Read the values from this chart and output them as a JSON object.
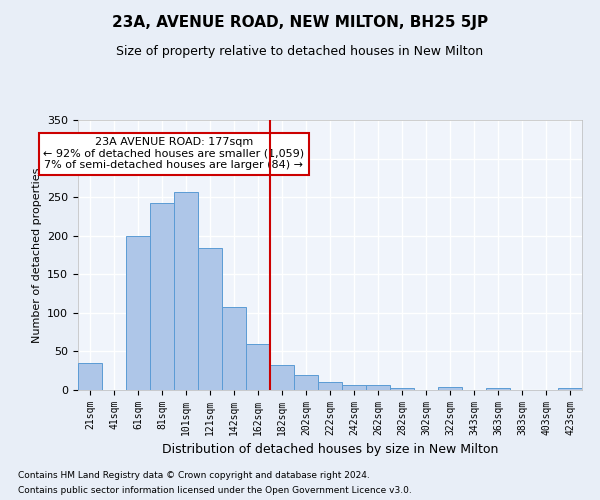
{
  "title": "23A, AVENUE ROAD, NEW MILTON, BH25 5JP",
  "subtitle": "Size of property relative to detached houses in New Milton",
  "xlabel": "Distribution of detached houses by size in New Milton",
  "ylabel": "Number of detached properties",
  "footnote1": "Contains HM Land Registry data © Crown copyright and database right 2024.",
  "footnote2": "Contains public sector information licensed under the Open Government Licence v3.0.",
  "bar_labels": [
    "21sqm",
    "41sqm",
    "61sqm",
    "81sqm",
    "101sqm",
    "121sqm",
    "142sqm",
    "162sqm",
    "182sqm",
    "202sqm",
    "222sqm",
    "242sqm",
    "262sqm",
    "282sqm",
    "302sqm",
    "322sqm",
    "343sqm",
    "363sqm",
    "383sqm",
    "403sqm",
    "423sqm"
  ],
  "bar_values": [
    35,
    0,
    199,
    243,
    257,
    184,
    108,
    59,
    32,
    19,
    10,
    6,
    6,
    3,
    0,
    4,
    0,
    2,
    0,
    0,
    2
  ],
  "bar_color": "#aec6e8",
  "bar_edge_color": "#5b9bd5",
  "vline_color": "#cc0000",
  "annotation_title": "23A AVENUE ROAD: 177sqm",
  "annotation_line1": "← 92% of detached houses are smaller (1,059)",
  "annotation_line2": "7% of semi-detached houses are larger (84) →",
  "annotation_box_color": "#cc0000",
  "ylim": [
    0,
    350
  ],
  "yticks": [
    0,
    50,
    100,
    150,
    200,
    250,
    300,
    350
  ],
  "bg_color": "#e8eef7",
  "plot_bg_color": "#f0f4fb",
  "grid_color": "#ffffff",
  "title_fontsize": 11,
  "subtitle_fontsize": 9,
  "ylabel_fontsize": 8,
  "xlabel_fontsize": 9,
  "tick_fontsize": 7,
  "footnote_fontsize": 6.5,
  "annotation_fontsize": 8
}
